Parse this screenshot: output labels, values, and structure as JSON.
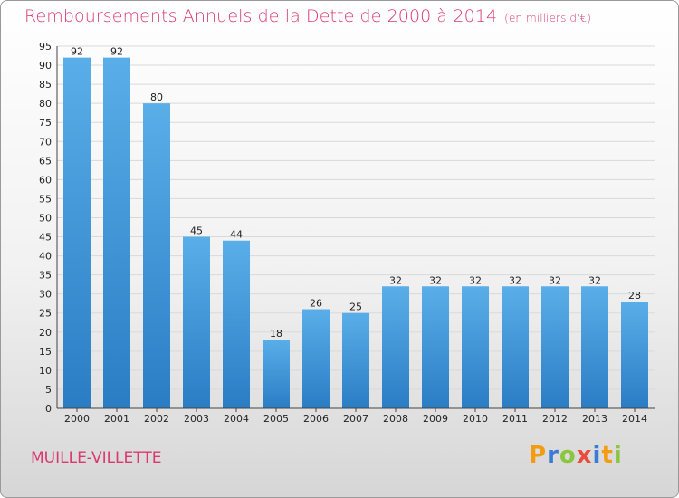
{
  "header": {
    "title": "Remboursements Annuels de la Dette de 2000 à 2014",
    "unit": "(en milliers d'€)"
  },
  "footer": {
    "city": "MUILLE-VILLETTE",
    "brand": "Proxiti",
    "brand_letters": [
      "P",
      "r",
      "o",
      "x",
      "i",
      "t",
      "i"
    ],
    "brand_colors": [
      "#f39c12",
      "#3a7bd5",
      "#8cc63f",
      "#e74c3c",
      "#3a7bd5",
      "#f39c12",
      "#8cc63f"
    ]
  },
  "colors": {
    "title": "#d83a6e",
    "bar_top": "#5aaee8",
    "bar_bottom": "#2a7dc4",
    "grid": "#d9d9d9"
  },
  "chart_data": {
    "type": "bar",
    "title": "Remboursements Annuels de la Dette de 2000 à 2014",
    "subtitle": "(en milliers d'€)",
    "categories": [
      "2000",
      "2001",
      "2002",
      "2003",
      "2004",
      "2005",
      "2006",
      "2007",
      "2008",
      "2009",
      "2010",
      "2011",
      "2012",
      "2013",
      "2014"
    ],
    "values": [
      92,
      92,
      80,
      45,
      44,
      18,
      26,
      25,
      32,
      32,
      32,
      32,
      32,
      32,
      28
    ],
    "ylim": [
      0,
      95
    ],
    "ytick_step": 5,
    "grid": true,
    "data_labels": true
  }
}
